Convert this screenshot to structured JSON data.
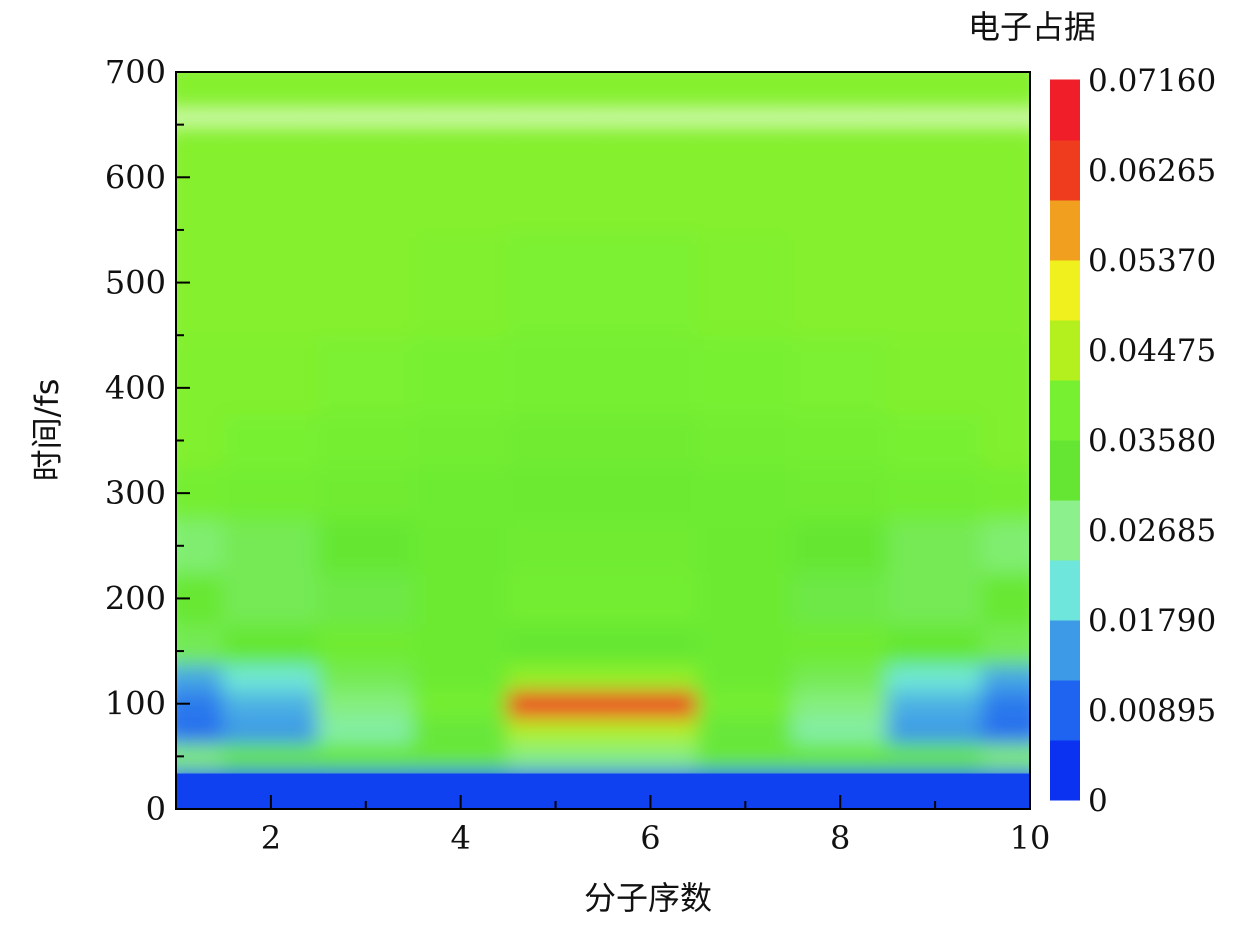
{
  "chart_data": {
    "type": "heatmap",
    "title": "",
    "xlabel": "分子序数",
    "ylabel": "时间/fs",
    "xlim": [
      1,
      10
    ],
    "ylim": [
      0,
      700
    ],
    "x_ticks": [
      2,
      4,
      6,
      8,
      10
    ],
    "x_tick_labels": [
      "2",
      "4",
      "6",
      "8",
      "10"
    ],
    "y_ticks": [
      0,
      100,
      200,
      300,
      400,
      500,
      600,
      700
    ],
    "y_tick_labels": [
      "0",
      "100",
      "200",
      "300",
      "400",
      "500",
      "600",
      "700"
    ],
    "colorbar": {
      "title": "电子占据",
      "min": 0,
      "max": 0.0716,
      "ticks": [
        0,
        0.00895,
        0.0179,
        0.02685,
        0.0358,
        0.04475,
        0.0537,
        0.06265,
        0.0716
      ],
      "tick_labels": [
        "0",
        "0.00895",
        "0.01790",
        "0.02685",
        "0.03580",
        "0.04475",
        "0.05370",
        "0.06265",
        "0.07160"
      ],
      "colors": [
        "#0a32f0",
        "#1e64f0",
        "#3c9ae6",
        "#6ee6dc",
        "#8cf08c",
        "#64e632",
        "#78f032",
        "#b4f01e",
        "#f0f01e",
        "#f0a01e",
        "#f03c1e",
        "#f01e28"
      ]
    },
    "molecule_index": [
      1,
      2,
      3,
      4,
      5,
      6,
      7,
      8,
      9,
      10
    ],
    "time_fs": [
      0,
      25,
      50,
      75,
      100,
      125,
      150,
      200,
      250,
      300,
      350,
      400,
      500,
      600,
      700
    ],
    "occupation": [
      [
        0.002,
        0.002,
        0.002,
        0.002,
        0.002,
        0.002,
        0.002,
        0.002,
        0.002,
        0.002
      ],
      [
        0.004,
        0.004,
        0.004,
        0.004,
        0.004,
        0.004,
        0.004,
        0.004,
        0.004,
        0.004
      ],
      [
        0.028,
        0.032,
        0.034,
        0.032,
        0.027,
        0.027,
        0.032,
        0.034,
        0.032,
        0.028
      ],
      [
        0.008,
        0.013,
        0.024,
        0.032,
        0.045,
        0.045,
        0.032,
        0.024,
        0.013,
        0.008
      ],
      [
        0.009,
        0.015,
        0.027,
        0.038,
        0.0716,
        0.0716,
        0.038,
        0.027,
        0.015,
        0.009
      ],
      [
        0.014,
        0.02,
        0.03,
        0.035,
        0.042,
        0.042,
        0.035,
        0.03,
        0.02,
        0.014
      ],
      [
        0.03,
        0.033,
        0.036,
        0.035,
        0.033,
        0.033,
        0.035,
        0.036,
        0.033,
        0.03
      ],
      [
        0.034,
        0.03,
        0.031,
        0.035,
        0.037,
        0.037,
        0.035,
        0.031,
        0.03,
        0.034
      ],
      [
        0.028,
        0.03,
        0.033,
        0.035,
        0.036,
        0.036,
        0.035,
        0.033,
        0.03,
        0.028
      ],
      [
        0.038,
        0.037,
        0.036,
        0.0355,
        0.035,
        0.035,
        0.0355,
        0.036,
        0.037,
        0.038
      ],
      [
        0.04,
        0.039,
        0.038,
        0.037,
        0.036,
        0.036,
        0.037,
        0.038,
        0.039,
        0.04
      ],
      [
        0.04,
        0.04,
        0.0395,
        0.039,
        0.0385,
        0.0385,
        0.039,
        0.0395,
        0.04,
        0.04
      ],
      [
        0.0405,
        0.0405,
        0.0405,
        0.04,
        0.0395,
        0.0395,
        0.04,
        0.0405,
        0.0405,
        0.0405
      ],
      [
        0.0405,
        0.0405,
        0.0405,
        0.0405,
        0.0405,
        0.0405,
        0.0405,
        0.0405,
        0.0405,
        0.0405
      ],
      [
        0.0405,
        0.0405,
        0.0405,
        0.0405,
        0.0405,
        0.0405,
        0.0405,
        0.0405,
        0.0405,
        0.0405
      ]
    ]
  }
}
